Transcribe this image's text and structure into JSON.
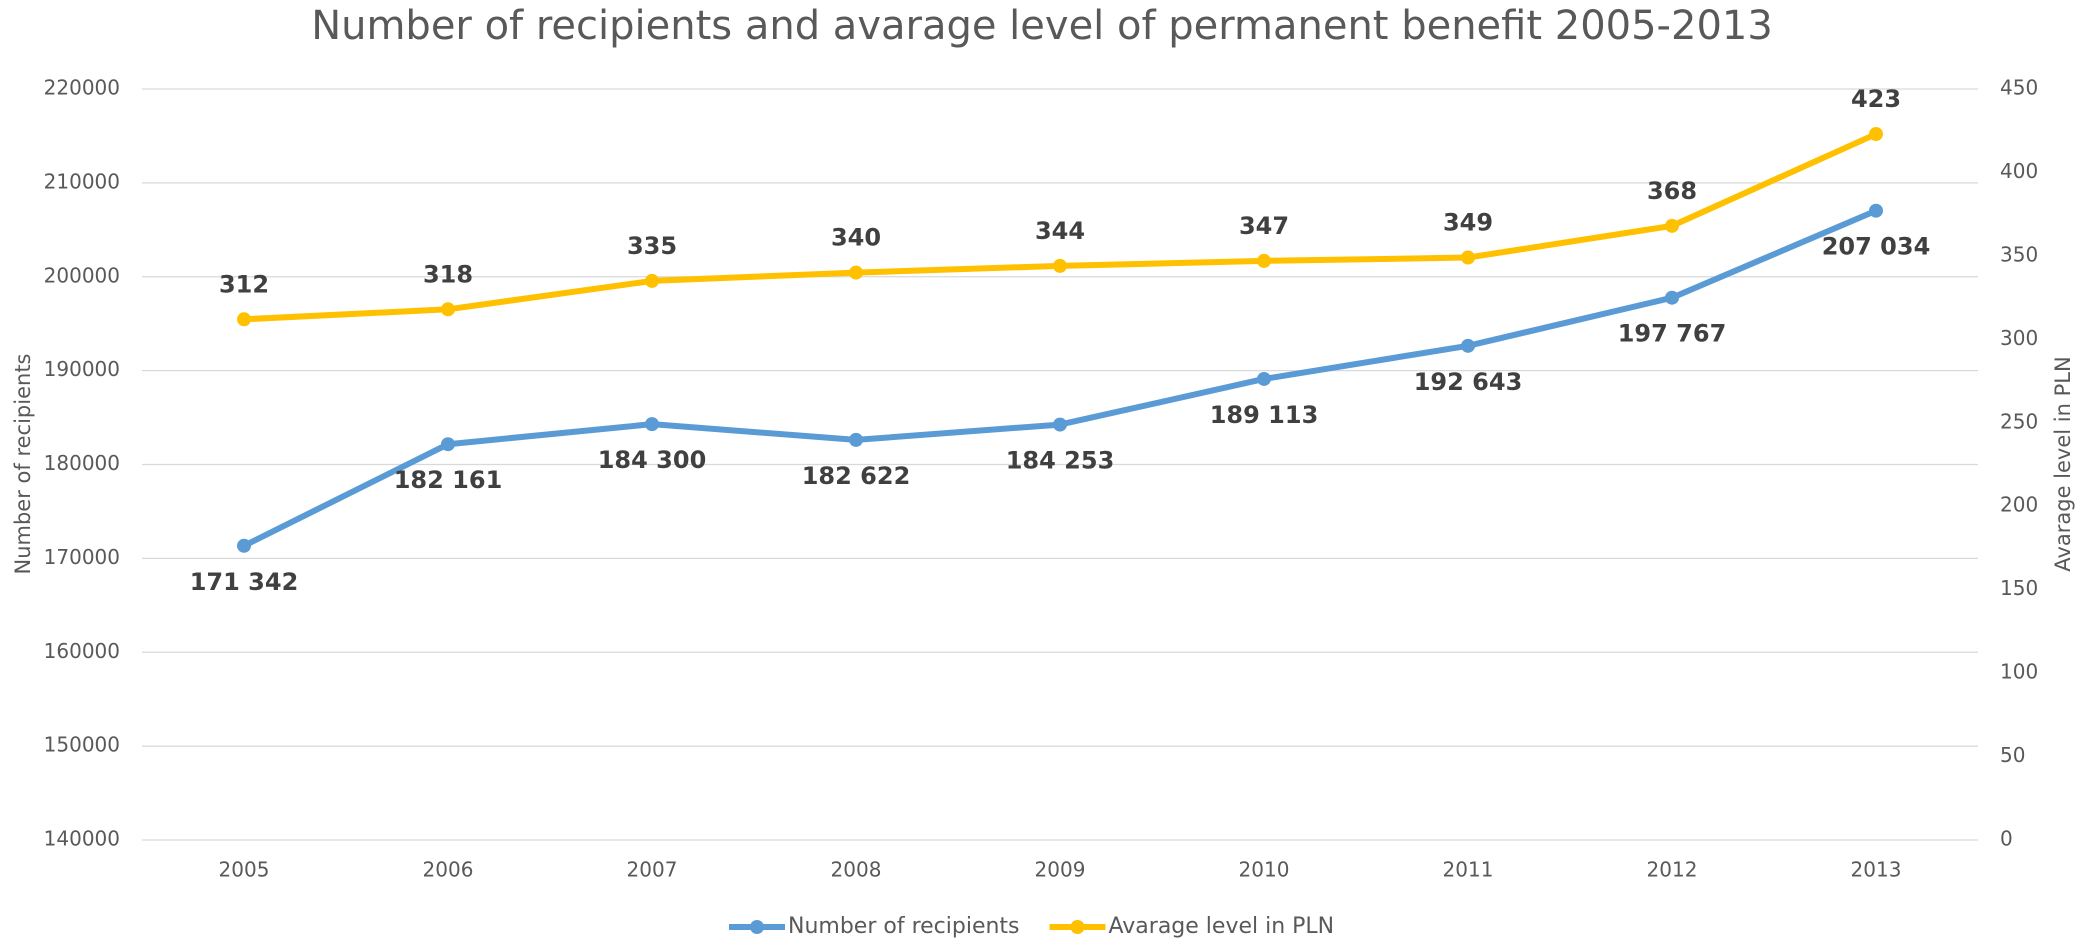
{
  "chart_data": {
    "type": "line",
    "title": "Number of recipients and avarage level of permanent benefit 2005-2013",
    "y_label": "Number of recipients",
    "y2_label": "Avarage level in PLN",
    "categories": [
      "2005",
      "2006",
      "2007",
      "2008",
      "2009",
      "2010",
      "2011",
      "2012",
      "2013"
    ],
    "series": [
      {
        "name": "Number of recipients",
        "color": "#5b9bd5",
        "values": [
          171342,
          182161,
          184300,
          182622,
          184253,
          189113,
          192643,
          197767,
          207034
        ],
        "value_labels": [
          "171 342",
          "182 161",
          "184 300",
          "182 622",
          "184 253",
          "189 113",
          "192 643",
          "197 767",
          "207 034"
        ]
      },
      {
        "name": "Avarage level in PLN",
        "color": "#ffc000",
        "axis": "y2",
        "values": [
          312,
          318,
          335,
          340,
          344,
          347,
          349,
          368,
          423
        ]
      }
    ],
    "ylim": [
      140000,
      220000
    ],
    "yticks": [
      140000,
      150000,
      160000,
      170000,
      180000,
      190000,
      200000,
      210000,
      220000
    ],
    "y2lim": [
      0,
      450
    ],
    "y2ticks": [
      0,
      50,
      100,
      150,
      200,
      250,
      300,
      350,
      400,
      450
    ],
    "grid": true,
    "legend": "bottom"
  }
}
